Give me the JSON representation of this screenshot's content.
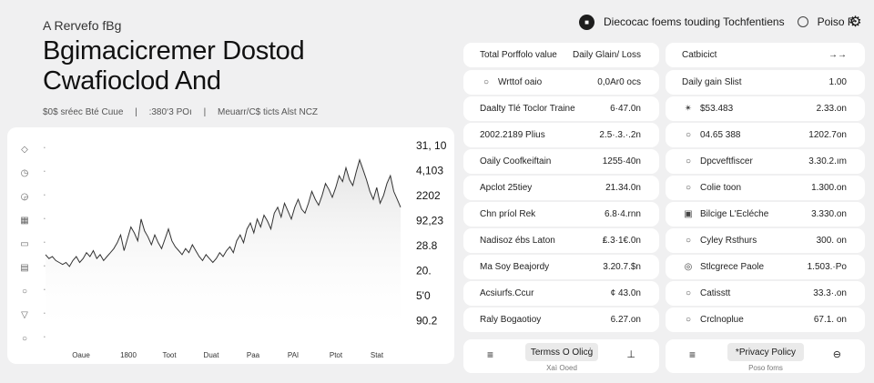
{
  "brand": "A Rervefo fBg",
  "headline": {
    "line1": "Bgimacicremer Dostod",
    "line2": "Cwafioclod And"
  },
  "meta": [
    "$0$ sréec Bté Cuue",
    "|",
    ":380‘3 POı",
    "|",
    "Meuarr/C$ ticts Alst NCZ"
  ],
  "topbar": {
    "avatar_glyph": "■",
    "title": "Diecocac foems touding Tochfentiens",
    "toggle_label": "Poiso R"
  },
  "settings_icon": "settings-icon",
  "chart_data": {
    "type": "line",
    "title": "",
    "xlabel": "",
    "ylabel": "",
    "x_ticks": [
      "Oaue",
      "1800",
      "Toot",
      "Duat",
      "Paa",
      "PAI",
      "Ptot",
      "Stat"
    ],
    "y_ticks": [
      "31, 10",
      "4,103",
      "2202",
      "92,23",
      "28.8",
      "20.",
      "5'0",
      "90.2"
    ],
    "ylim": [
      0,
      100
    ],
    "grid": false,
    "series": [
      {
        "values": [
          42,
          40,
          41,
          39,
          38,
          37,
          38,
          36,
          39,
          41,
          38,
          40,
          43,
          41,
          44,
          40,
          42,
          39,
          41,
          43,
          45,
          48,
          52,
          44,
          50,
          56,
          53,
          49,
          60,
          54,
          51,
          47,
          52,
          48,
          45,
          50,
          55,
          49,
          46,
          44,
          42,
          45,
          43,
          47,
          44,
          41,
          39,
          42,
          40,
          38,
          40,
          43,
          41,
          44,
          46,
          43,
          49,
          52,
          48,
          55,
          58,
          53,
          60,
          56,
          62,
          59,
          55,
          63,
          66,
          61,
          68,
          64,
          60,
          66,
          70,
          65,
          63,
          68,
          74,
          70,
          67,
          72,
          78,
          75,
          71,
          76,
          82,
          79,
          86,
          80,
          77,
          84,
          90,
          85,
          80,
          74,
          70,
          76,
          68,
          72,
          78,
          82,
          74,
          70,
          66
        ]
      }
    ]
  },
  "chart_icons": [
    "sun-icon",
    "clock-icon",
    "clock-icon",
    "grid-icon",
    "inbox-icon",
    "grid-icon",
    "circle-icon",
    "pin-icon",
    "circle-icon"
  ],
  "left_rows": [
    {
      "label": "Total Porffolo value",
      "value": "Daily Glain/ Loss",
      "icon": ""
    },
    {
      "label": "Wrttof oaio",
      "value": "0,0Ar0 ocs",
      "icon": "○"
    },
    {
      "label": "Daalty Tlé Toclor Traine",
      "value": "6·47.0n",
      "icon": ""
    },
    {
      "label": "2002.2189 Plius",
      "value": "2.5·.3.·.2n",
      "icon": ""
    },
    {
      "label": "Oaily Coofkeiftain",
      "value": "1255·40n",
      "icon": ""
    },
    {
      "label": "Apclot 25tiey",
      "value": "21.34.0n",
      "icon": ""
    },
    {
      "label": "Chn príol Rek",
      "value": "6.8·4.rnn",
      "icon": ""
    },
    {
      "label": "Nadisoz ébs Laton",
      "value": "₤.3·1€.0n",
      "icon": ""
    },
    {
      "label": "Ma Soy Beajordy",
      "value": "3.20.7.$n",
      "icon": ""
    },
    {
      "label": "Acsiurfs.Ccur",
      "value": "¢ 43.0n",
      "icon": ""
    },
    {
      "label": "Raly Bogaotioy",
      "value": "6.27.on",
      "icon": ""
    }
  ],
  "right_rows": [
    {
      "label": "Catbicict",
      "value": "→→",
      "icon": ""
    },
    {
      "label": "Daily gain Slist",
      "value": "1.00",
      "icon": ""
    },
    {
      "label": "$53.483",
      "value": "2.33.on",
      "icon": "✴"
    },
    {
      "label": "04.65 388",
      "value": "1202.7on",
      "icon": "○"
    },
    {
      "label": "Dpcveftfiscer",
      "value": "3.30.2.ım",
      "icon": "○"
    },
    {
      "label": "Colie toon",
      "value": "1.300.on",
      "icon": "○"
    },
    {
      "label": "Bilcige L'Écléche",
      "value": "3.330.on",
      "icon": "▣"
    },
    {
      "label": "Cyley Rsthurs",
      "value": "300. on",
      "icon": "○"
    },
    {
      "label": "Stlcgrece Paole",
      "value": "1.503.·Po",
      "icon": "◎"
    },
    {
      "label": "Catisstt",
      "value": "33.3·.on",
      "icon": "○"
    },
    {
      "label": "Crclnoplue",
      "value": "67.1. on",
      "icon": "○"
    }
  ],
  "footer_left": {
    "menu_icon": "≡",
    "chip": "Termss O Olicġ",
    "sub": "Xaì Ooed",
    "end_icon": "⊥"
  },
  "footer_right": {
    "menu_icon": "≡",
    "chip": "*Privacy Policy",
    "sub": "Poso foms",
    "end_icon": "⊖"
  }
}
